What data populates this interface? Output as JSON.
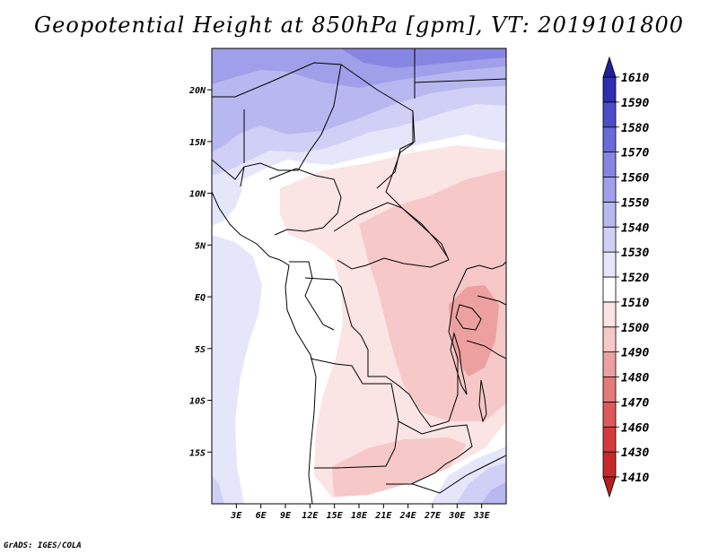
{
  "title": "Geopotential Height at 850hPa [gpm], VT: 2019101800",
  "footer": "GrADS: IGES/COLA",
  "map": {
    "lon_range": [
      0,
      36
    ],
    "lat_range": [
      -20,
      24
    ],
    "lat_ticks": [
      {
        "value": 20,
        "label": "20N"
      },
      {
        "value": 15,
        "label": "15N"
      },
      {
        "value": 10,
        "label": "10N"
      },
      {
        "value": 5,
        "label": "5N"
      },
      {
        "value": 0,
        "label": "EQ"
      },
      {
        "value": -5,
        "label": "5S"
      },
      {
        "value": -10,
        "label": "10S"
      },
      {
        "value": -15,
        "label": "15S"
      }
    ],
    "lon_ticks": [
      {
        "value": 3,
        "label": "3E"
      },
      {
        "value": 6,
        "label": "6E"
      },
      {
        "value": 9,
        "label": "9E"
      },
      {
        "value": 12,
        "label": "12E"
      },
      {
        "value": 15,
        "label": "15E"
      },
      {
        "value": 18,
        "label": "18E"
      },
      {
        "value": 21,
        "label": "21E"
      },
      {
        "value": 24,
        "label": "24E"
      },
      {
        "value": 27,
        "label": "27E"
      },
      {
        "value": 30,
        "label": "30E"
      },
      {
        "value": 33,
        "label": "33E"
      }
    ]
  },
  "colorbar": {
    "levels": [
      "1410",
      "1430",
      "1460",
      "1470",
      "1480",
      "1490",
      "1500",
      "1510",
      "1520",
      "1530",
      "1540",
      "1550",
      "1560",
      "1570",
      "1580",
      "1590",
      "1610"
    ],
    "colors": {
      "low_end": "#b41e1e",
      "bins": [
        "#c42a2a",
        "#d43c3c",
        "#dc5a5a",
        "#e47a7a",
        "#eda0a0",
        "#f6c8c8",
        "#fbe4e4",
        "#ffffff",
        "#e6e6fb",
        "#d0d0f6",
        "#b8b8f0",
        "#9f9fea",
        "#8686e2",
        "#6a6ad8",
        "#4c4cc8",
        "#2e2eb0"
      ],
      "high_end": "#20209a"
    }
  }
}
